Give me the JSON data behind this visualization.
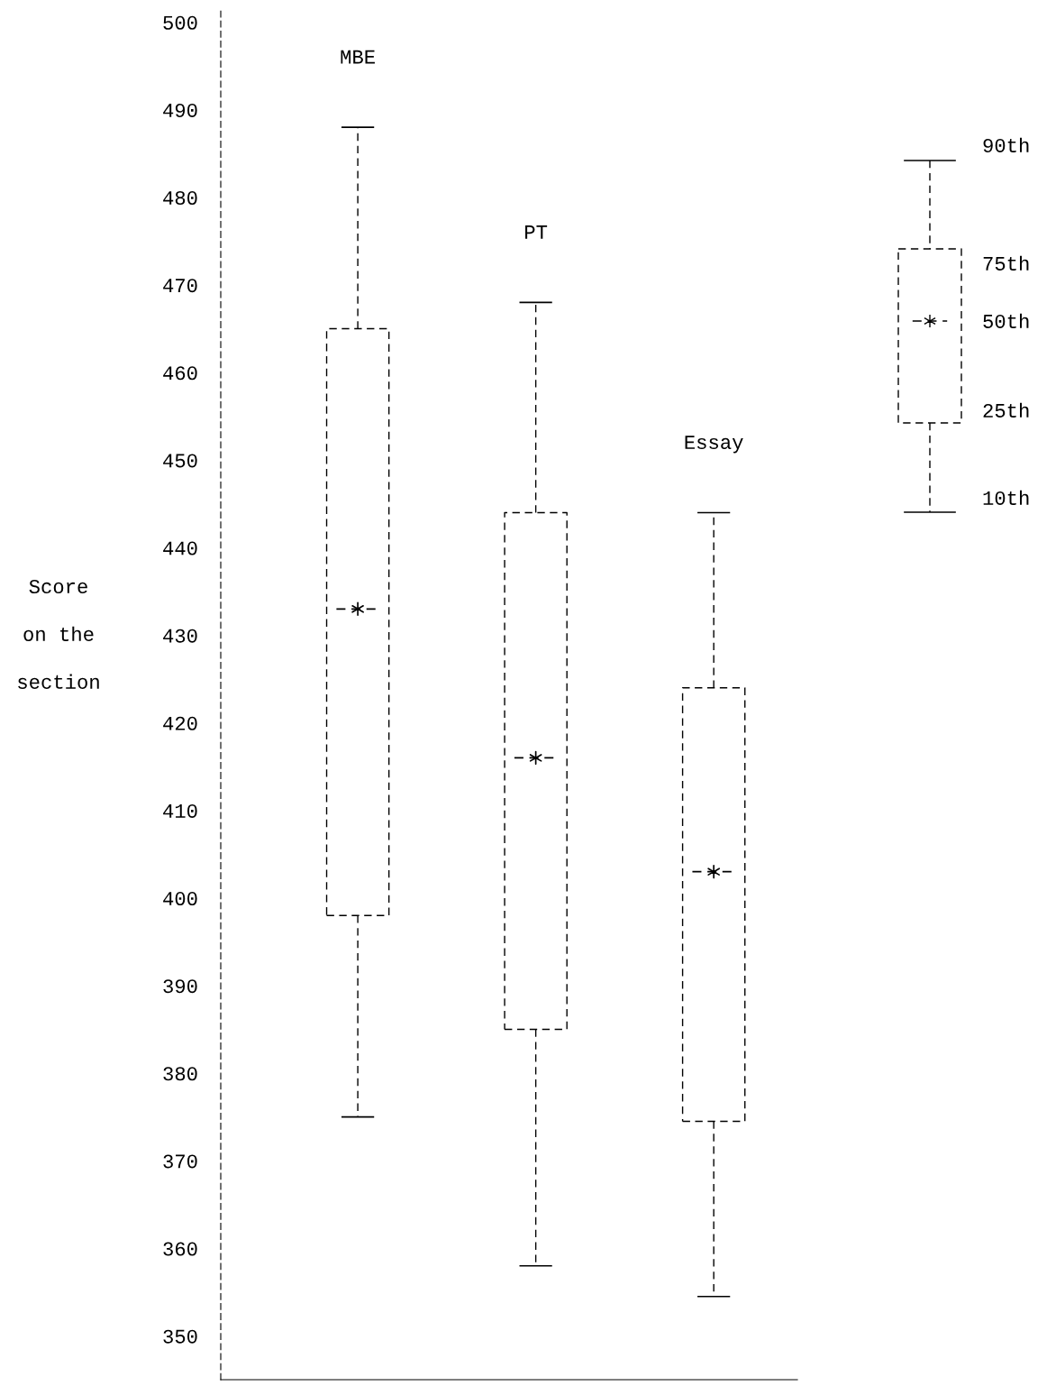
{
  "chart_data": {
    "type": "box",
    "categories": [
      "MBE",
      "PT",
      "Essay"
    ],
    "ylabel": "Score\non the\nsection",
    "ylim": [
      345,
      501.5
    ],
    "yticks": [
      350,
      360,
      370,
      380,
      390,
      400,
      410,
      420,
      430,
      440,
      450,
      460,
      470,
      480,
      490,
      500
    ],
    "boxes": [
      {
        "low": 375,
        "q1": 398,
        "median": 433,
        "q3": 465,
        "high": 488
      },
      {
        "low": 358,
        "q1": 385,
        "median": 416,
        "q3": 444,
        "high": 468
      },
      {
        "low": 354.5,
        "q1": 374.5,
        "median": 403,
        "q3": 424,
        "high": 444
      }
    ],
    "series": [
      {
        "type": "scatter",
        "x": [
          "MBE",
          "PT",
          "Essay"
        ],
        "values": [
          433,
          416,
          403
        ],
        "color": "#000000",
        "marker": "cross"
      }
    ],
    "annotations": [
      "90th",
      "75th",
      "50th",
      "25th",
      "10th"
    ],
    "tick_labels": "y",
    "grid": false,
    "legend": false,
    "line_style": "dashed"
  }
}
